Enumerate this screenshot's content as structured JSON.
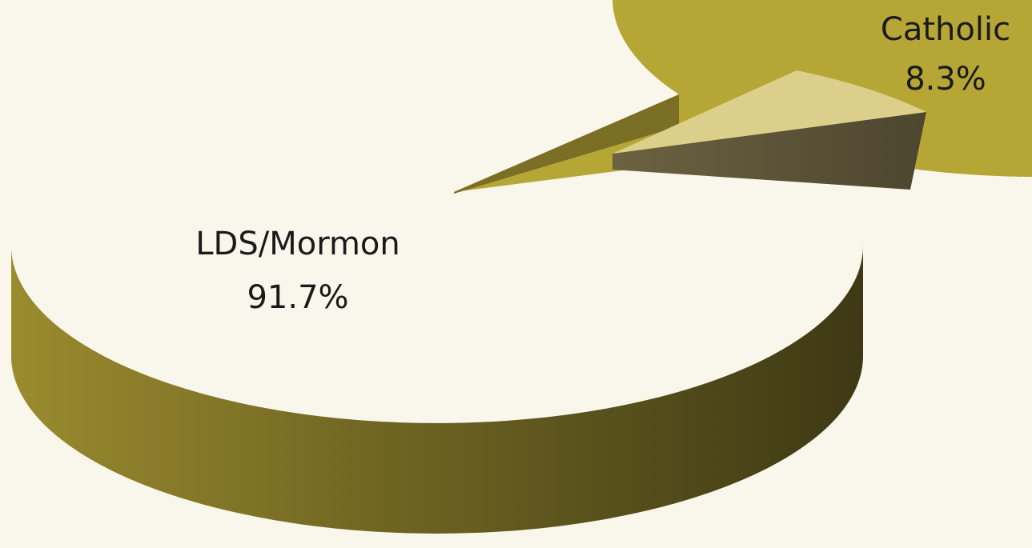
{
  "chart_data": {
    "type": "pie",
    "style": "3d-exploded",
    "slices": [
      {
        "label": "LDS/Mormon",
        "value_label": "91.7%",
        "value": 91.7,
        "color": "#b5a636"
      },
      {
        "label": "Catholic",
        "value_label": "8.3%",
        "value": 8.3,
        "color": "#dccf8b"
      }
    ],
    "colors": {
      "background": "#f9f7ec",
      "primary_side_light": "#9a8b2e",
      "primary_side_dark": "#3e3914",
      "secondary_side": "#5a5238"
    }
  }
}
